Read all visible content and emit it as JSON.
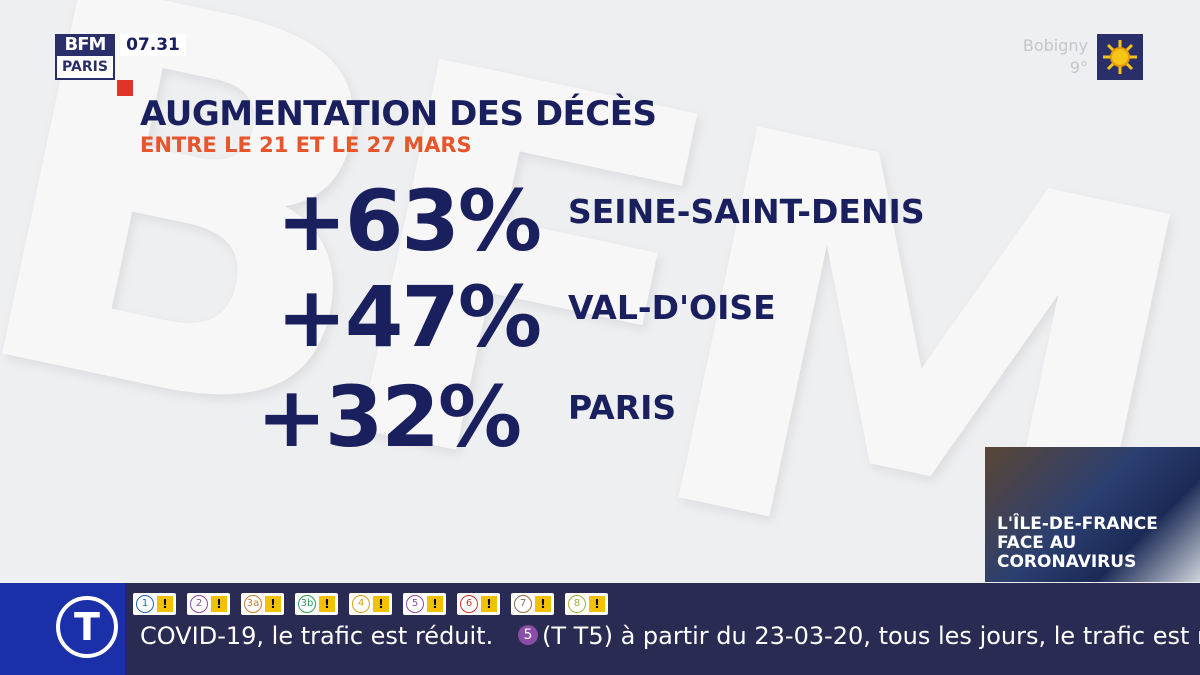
{
  "logo": {
    "top": "BFM",
    "bottom": "PARIS"
  },
  "clock": "07.31",
  "weather": {
    "city": "Bobigny",
    "temp": "9°"
  },
  "title": "AUGMENTATION DES DÉCÈS",
  "subtitle": "ENTRE LE 21 ET LE 27 MARS",
  "rows": [
    {
      "value": "+63%",
      "label": "SEINE-SAINT-DENIS"
    },
    {
      "value": "+47%",
      "label": "VAL-D'OISE"
    },
    {
      "value": "+32%",
      "label": "PARIS"
    }
  ],
  "inset": {
    "caption": [
      "L'ÎLE-DE-FRANCE",
      "FACE AU",
      "CORONAVIRUS"
    ]
  },
  "ticker": {
    "icon": "T",
    "lines": [
      "1",
      "2",
      "3a",
      "3b",
      "4",
      "5",
      "6",
      "7",
      "8"
    ],
    "alert": "!",
    "text": "COVID-19, le trafic est réduit.",
    "badge": "5",
    "text2": "(T T5) à partir du 23-03-20, tous les jours, le trafic est r"
  }
}
